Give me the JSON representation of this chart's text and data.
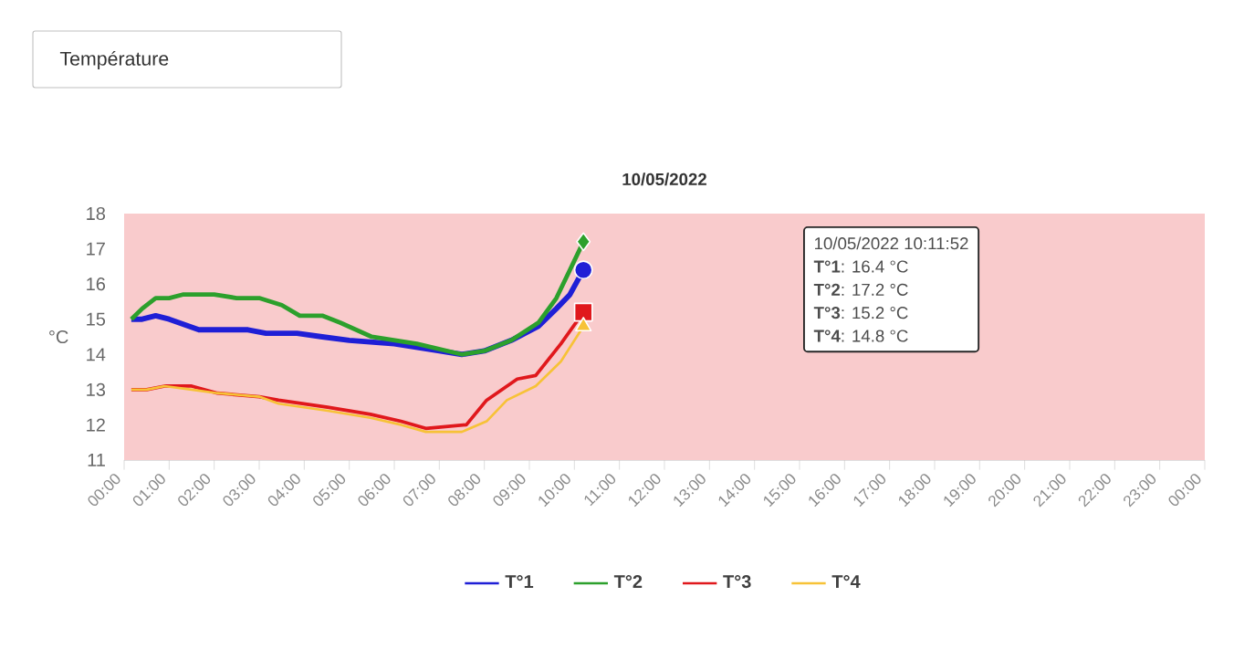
{
  "chart_data": {
    "type": "line",
    "title": "10/05/2022",
    "ylabel": "°C",
    "annotations": [
      "Température",
      "10/05/2022 10:11:52",
      "**T°1**: 16.4 °C",
      "**T°2**: 17.2 °C",
      "**T°3**: 15.2 °C",
      "**T°4**: 14.8 °C"
    ],
    "xlim": [
      0,
      24
    ],
    "ylim": [
      11,
      18
    ],
    "xticks": [
      {
        "value": 0,
        "label": "00:00"
      },
      {
        "value": 1,
        "label": "01:00"
      },
      {
        "value": 2,
        "label": "02:00"
      },
      {
        "value": 3,
        "label": "03:00"
      },
      {
        "value": 4,
        "label": "04:00"
      },
      {
        "value": 5,
        "label": "05:00"
      },
      {
        "value": 6,
        "label": "06:00"
      },
      {
        "value": 7,
        "label": "07:00"
      },
      {
        "value": 8,
        "label": "08:00"
      },
      {
        "value": 9,
        "label": "09:00"
      },
      {
        "value": 10,
        "label": "10:00"
      },
      {
        "value": 11,
        "label": "11:00"
      },
      {
        "value": 12,
        "label": "12:00"
      },
      {
        "value": 13,
        "label": "13:00"
      },
      {
        "value": 14,
        "label": "14:00"
      },
      {
        "value": 15,
        "label": "15:00"
      },
      {
        "value": 16,
        "label": "16:00"
      },
      {
        "value": 17,
        "label": "17:00"
      },
      {
        "value": 18,
        "label": "18:00"
      },
      {
        "value": 19,
        "label": "19:00"
      },
      {
        "value": 20,
        "label": "20:00"
      },
      {
        "value": 21,
        "label": "21:00"
      },
      {
        "value": 22,
        "label": "22:00"
      },
      {
        "value": 23,
        "label": "23:00"
      },
      {
        "value": 24,
        "label": "00:00"
      }
    ],
    "yticks": [
      11,
      12,
      13,
      14,
      15,
      16,
      17,
      18
    ],
    "bands": [
      {
        "axis": "y",
        "from": 11,
        "to": 18,
        "color": "#f9cbcc"
      }
    ],
    "legend": "bottom",
    "series": [
      {
        "name": "T°1",
        "color": "#1f1fd6",
        "x": [
          0.16,
          0.4,
          0.7,
          1.0,
          1.66,
          2.75,
          3.15,
          3.84,
          4.4,
          5.0,
          6.0,
          7.0,
          7.5,
          8.0,
          8.6,
          9.2,
          9.6,
          9.9,
          10.2
        ],
        "values": [
          15.0,
          15.0,
          15.1,
          15.0,
          14.7,
          14.7,
          14.6,
          14.6,
          14.5,
          14.4,
          14.3,
          14.1,
          14.0,
          14.1,
          14.4,
          14.8,
          15.3,
          15.7,
          16.4
        ]
      },
      {
        "name": "T°2",
        "color": "#2ca02c",
        "x": [
          0.16,
          0.4,
          0.7,
          1.0,
          1.3,
          2.0,
          2.5,
          3.0,
          3.5,
          3.9,
          4.4,
          4.8,
          5.5,
          6.5,
          7.5,
          8.0,
          8.6,
          9.2,
          9.6,
          9.9,
          10.2
        ],
        "values": [
          15.0,
          15.3,
          15.6,
          15.6,
          15.7,
          15.7,
          15.6,
          15.6,
          15.4,
          15.1,
          15.1,
          14.9,
          14.5,
          14.3,
          14.0,
          14.1,
          14.4,
          14.9,
          15.6,
          16.4,
          17.2
        ]
      },
      {
        "name": "T°3",
        "color": "#e0181c",
        "x": [
          0.16,
          0.5,
          0.9,
          1.5,
          2.07,
          3.0,
          3.43,
          4.52,
          5.47,
          6.15,
          6.7,
          7.6,
          8.05,
          8.73,
          9.14,
          9.7,
          10.2
        ],
        "values": [
          13.0,
          13.0,
          13.1,
          13.1,
          12.9,
          12.8,
          12.7,
          12.5,
          12.3,
          12.1,
          11.9,
          12.0,
          12.7,
          13.3,
          13.4,
          14.3,
          15.2
        ]
      },
      {
        "name": "T°4",
        "color": "#f7c237",
        "x": [
          0.16,
          0.5,
          0.9,
          1.5,
          2.07,
          3.0,
          3.43,
          4.52,
          5.47,
          6.15,
          6.7,
          7.5,
          8.05,
          8.5,
          9.14,
          9.7,
          10.2
        ],
        "values": [
          13.0,
          13.0,
          13.1,
          13.0,
          12.9,
          12.8,
          12.6,
          12.4,
          12.2,
          12.0,
          11.8,
          11.8,
          12.1,
          12.7,
          13.1,
          13.8,
          14.8
        ]
      },
      {
        "type": "scatter",
        "color": "#1f1fd6",
        "marker": "circle",
        "x": [
          10.2
        ],
        "values": [
          16.4
        ]
      },
      {
        "type": "scatter",
        "color": "#2ca02c",
        "marker": "diamond",
        "x": [
          10.2
        ],
        "values": [
          17.2
        ]
      },
      {
        "type": "scatter",
        "color": "#e0181c",
        "marker": "square",
        "x": [
          10.2
        ],
        "values": [
          15.2
        ]
      },
      {
        "type": "scatter",
        "color": "#f7c237",
        "marker": "triangle",
        "x": [
          10.2
        ],
        "values": [
          14.8
        ]
      }
    ]
  }
}
